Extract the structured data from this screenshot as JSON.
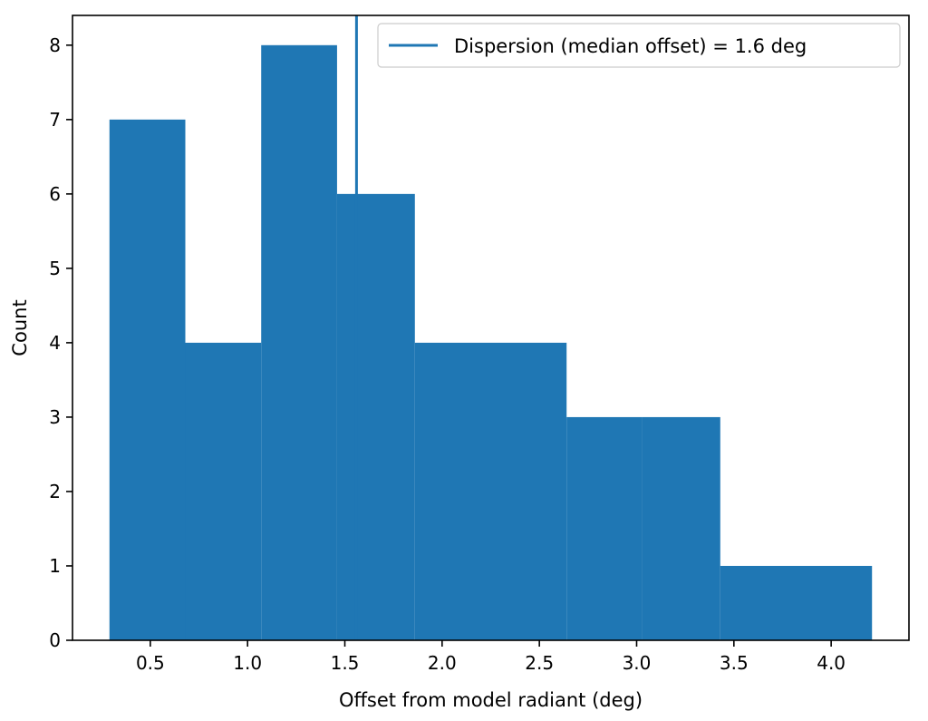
{
  "chart_data": {
    "type": "bar",
    "subtype": "histogram",
    "xlabel": "Offset from model radiant (deg)",
    "ylabel": "Count",
    "xlim": [
      0.1,
      4.4
    ],
    "ylim": [
      0,
      8.4
    ],
    "xticks": [
      0.5,
      1.0,
      1.5,
      2.0,
      2.5,
      3.0,
      3.5,
      4.0
    ],
    "xtick_labels": [
      "0.5",
      "1.0",
      "1.5",
      "2.0",
      "2.5",
      "3.0",
      "3.5",
      "4.0"
    ],
    "yticks": [
      0,
      1,
      2,
      3,
      4,
      5,
      6,
      7,
      8
    ],
    "ytick_labels": [
      "0",
      "1",
      "2",
      "3",
      "4",
      "5",
      "6",
      "7",
      "8"
    ],
    "bin_edges": [
      0.29,
      0.68,
      1.07,
      1.46,
      1.86,
      2.25,
      2.64,
      3.03,
      3.43,
      3.82,
      4.21
    ],
    "counts": [
      7,
      4,
      8,
      6,
      4,
      4,
      3,
      3,
      1,
      1
    ],
    "bar_color": "#1f77b4",
    "vline": {
      "x": 1.56,
      "label": "Dispersion (median offset) = 1.6 deg",
      "color": "#1f77b4"
    },
    "legend": {
      "position": "top-right",
      "entries": [
        "Dispersion (median offset) = 1.6 deg"
      ]
    },
    "grid": false
  }
}
